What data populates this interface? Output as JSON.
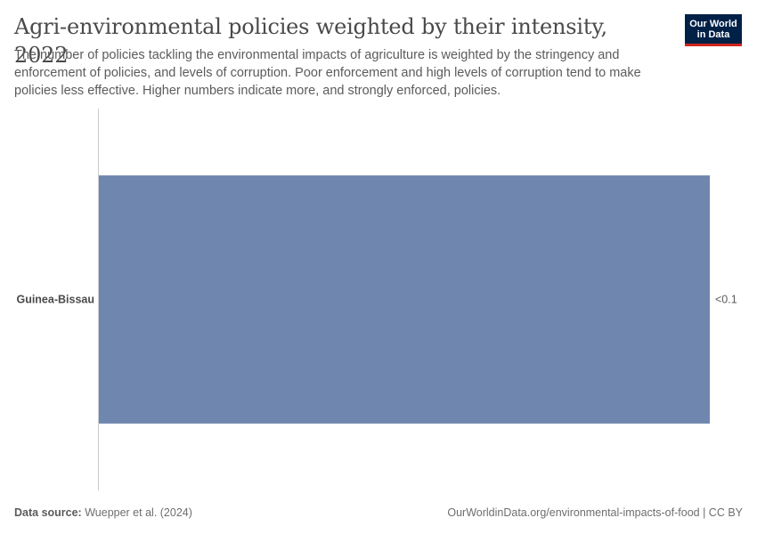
{
  "header": {
    "title": "Agri-environmental policies weighted by their intensity, 2022",
    "subtitle": "The number of policies tackling the environmental impacts of agriculture is weighted by the stringency and enforcement of policies, and levels of corruption. Poor enforcement and high levels of corruption tend to make policies less effective. Higher numbers indicate more, and strongly enforced, policies.",
    "logo_line1": "Our World",
    "logo_line2": "in Data"
  },
  "footer": {
    "source_label": "Data source:",
    "source_value": "Wuepper et al. (2024)",
    "license": "OurWorldinData.org/environmental-impacts-of-food | CC BY"
  },
  "colors": {
    "bar": "#6f87ae",
    "axis": "#cccccc",
    "logo_bg": "#002147",
    "logo_accent": "#ce261e"
  },
  "chart_data": {
    "type": "bar",
    "orientation": "horizontal",
    "title": "Agri-environmental policies weighted by their intensity, 2022",
    "categories": [
      "Guinea-Bissau"
    ],
    "values": [
      0.05
    ],
    "value_labels": [
      "<0.1"
    ],
    "xlim": [
      0,
      0.05
    ],
    "grid": false
  }
}
